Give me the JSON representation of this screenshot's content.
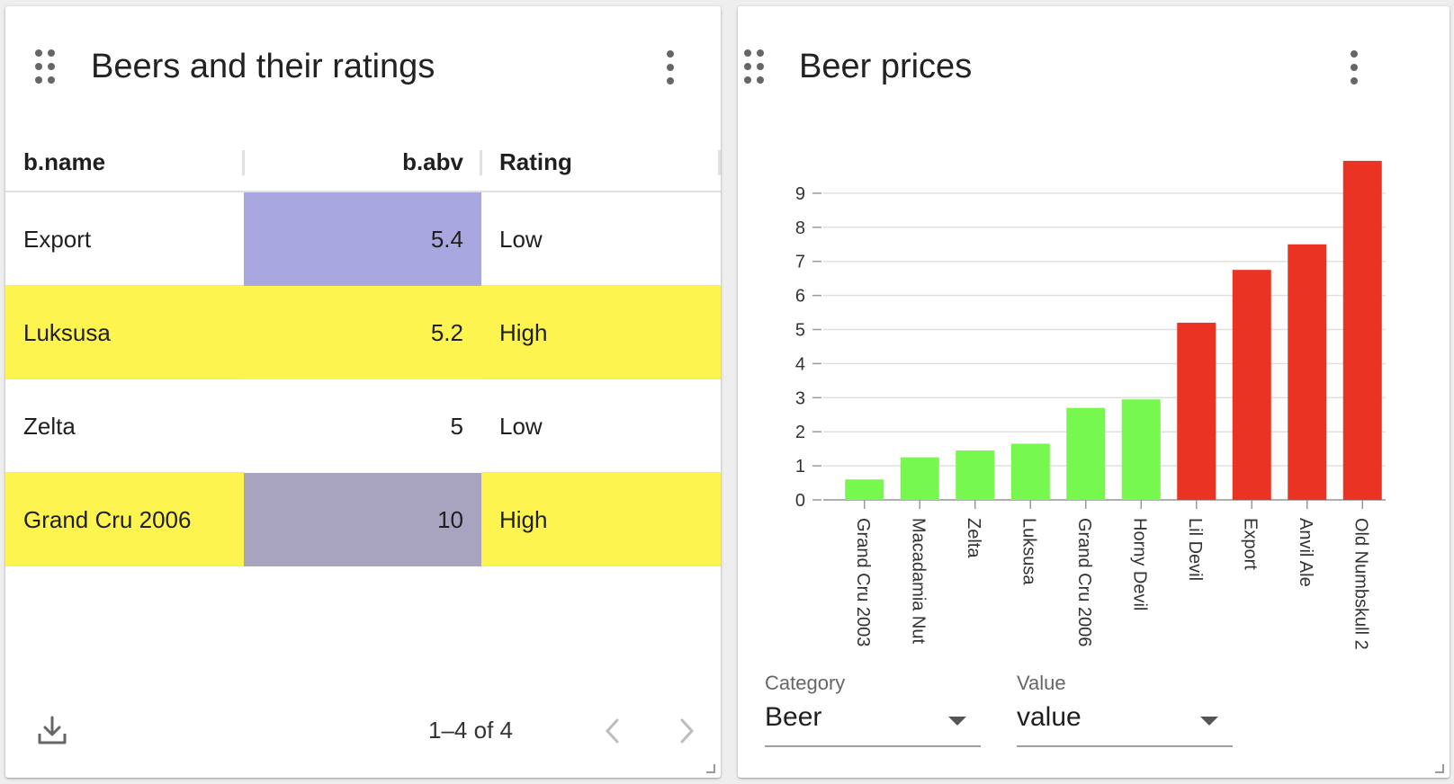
{
  "table_card": {
    "title": "Beers and their ratings",
    "columns": [
      "b.name",
      "b.abv",
      "Rating"
    ],
    "rows": [
      {
        "name": "Export",
        "abv": "5.4",
        "rating": "Low",
        "row_bg": "#ffffff",
        "abv_bg": "#a8a7e0"
      },
      {
        "name": "Luksusa",
        "abv": "5.2",
        "rating": "High",
        "row_bg": "#fdf44f",
        "abv_bg": "#fdf44f"
      },
      {
        "name": "Zelta",
        "abv": "5",
        "rating": "Low",
        "row_bg": "#ffffff",
        "abv_bg": "#ffffff"
      },
      {
        "name": "Grand Cru 2006",
        "abv": "10",
        "rating": "High",
        "row_bg": "#fdf44f",
        "abv_bg": "#a8a4c0"
      }
    ],
    "pager_text": "1–4 of 4",
    "icons": {
      "drag": "drag-handle-icon",
      "menu": "more-vert-icon",
      "download": "download-icon",
      "prev": "chevron-left-icon",
      "next": "chevron-right-icon"
    }
  },
  "chart_card": {
    "title": "Beer prices",
    "category_select": {
      "label": "Category",
      "value": "Beer"
    },
    "value_select": {
      "label": "Value",
      "value": "value"
    }
  },
  "chart_data": {
    "type": "bar",
    "categories": [
      "Grand Cru 2003",
      "Macadamia Nut",
      "Zelta",
      "Luksusa",
      "Grand Cru 2006",
      "Horny Devil",
      "Lil Devil",
      "Export",
      "Anvil Ale",
      "Old Numbskull 2"
    ],
    "values": [
      0.6,
      1.25,
      1.45,
      1.65,
      2.7,
      2.95,
      5.2,
      6.75,
      7.5,
      9.95
    ],
    "colors": [
      "#76f84f",
      "#76f84f",
      "#76f84f",
      "#76f84f",
      "#76f84f",
      "#76f84f",
      "#ea3323",
      "#ea3323",
      "#ea3323",
      "#ea3323"
    ],
    "yticks": [
      0,
      1,
      2,
      3,
      4,
      5,
      6,
      7,
      8,
      9
    ],
    "ylim": [
      0,
      10
    ],
    "grid": true,
    "title": "",
    "xlabel": "",
    "ylabel": ""
  }
}
